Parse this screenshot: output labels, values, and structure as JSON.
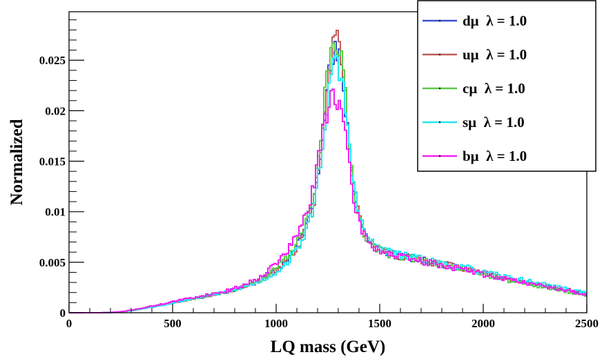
{
  "chart_data": {
    "type": "line",
    "style": "step-histogram",
    "title": "",
    "xlabel": "LQ mass (GeV)",
    "ylabel": "Normalized",
    "xlim": [
      0,
      2500
    ],
    "ylim": [
      0,
      0.0298
    ],
    "x_ticks": [
      0,
      500,
      1000,
      1500,
      2000,
      2500
    ],
    "x_tick_labels": [
      "0",
      "500",
      "1000",
      "1500",
      "2000",
      "2500"
    ],
    "y_ticks": [
      0,
      0.005,
      0.01,
      0.015,
      0.02,
      0.025
    ],
    "y_tick_labels": [
      "0",
      "0.005",
      "0.01",
      "0.015",
      "0.02",
      "0.025"
    ],
    "grid": false,
    "legend_position": "top-right",
    "bin_width": 10,
    "x": [
      0,
      50,
      100,
      150,
      200,
      250,
      300,
      350,
      400,
      450,
      500,
      550,
      600,
      650,
      700,
      750,
      800,
      850,
      900,
      950,
      1000,
      1050,
      1100,
      1150,
      1180,
      1200,
      1220,
      1240,
      1260,
      1280,
      1300,
      1320,
      1340,
      1360,
      1380,
      1400,
      1420,
      1440,
      1460,
      1500,
      1550,
      1600,
      1650,
      1700,
      1750,
      1800,
      1850,
      1900,
      1950,
      2000,
      2050,
      2100,
      2150,
      2200,
      2250,
      2300,
      2350,
      2400,
      2450,
      2500
    ],
    "series": [
      {
        "name": "dμ  λ = 1.0",
        "color": "#3a4fcf",
        "seed": 11,
        "values": [
          0,
          0,
          0,
          0,
          2e-05,
          8e-05,
          0.00022,
          0.0004,
          0.0006,
          0.0008,
          0.001,
          0.0012,
          0.0014,
          0.0016,
          0.0018,
          0.002,
          0.0023,
          0.0026,
          0.003,
          0.0035,
          0.0042,
          0.0052,
          0.0066,
          0.0088,
          0.0112,
          0.0138,
          0.0172,
          0.0212,
          0.0238,
          0.0254,
          0.0252,
          0.0232,
          0.0195,
          0.0152,
          0.0118,
          0.0095,
          0.0083,
          0.0075,
          0.0069,
          0.0063,
          0.0059,
          0.0056,
          0.0054,
          0.0052,
          0.005,
          0.0048,
          0.0046,
          0.0044,
          0.0042,
          0.0039,
          0.0037,
          0.0034,
          0.0032,
          0.003,
          0.0028,
          0.0026,
          0.0024,
          0.0022,
          0.002,
          0.0018
        ]
      },
      {
        "name": "uμ  λ = 1.0",
        "color": "#c05a5a",
        "seed": 23,
        "values": [
          0,
          0,
          0,
          0,
          2e-05,
          8e-05,
          0.00022,
          0.0004,
          0.0006,
          0.0008,
          0.001,
          0.0012,
          0.0014,
          0.0016,
          0.0018,
          0.002,
          0.0023,
          0.0026,
          0.003,
          0.0035,
          0.0042,
          0.0051,
          0.0064,
          0.0085,
          0.0108,
          0.0134,
          0.0168,
          0.0212,
          0.0246,
          0.0266,
          0.0262,
          0.0238,
          0.0198,
          0.0154,
          0.0119,
          0.0096,
          0.0083,
          0.0075,
          0.0069,
          0.0063,
          0.0059,
          0.0056,
          0.0054,
          0.0052,
          0.005,
          0.0048,
          0.0046,
          0.0044,
          0.0042,
          0.004,
          0.0037,
          0.0035,
          0.0033,
          0.0031,
          0.0029,
          0.0027,
          0.0025,
          0.0023,
          0.0021,
          0.0019
        ]
      },
      {
        "name": "cμ  λ = 1.0",
        "color": "#5cc84a",
        "seed": 37,
        "values": [
          0,
          0,
          0,
          0,
          2e-05,
          8e-05,
          0.00022,
          0.0004,
          0.0006,
          0.0008,
          0.001,
          0.0012,
          0.0014,
          0.0016,
          0.0018,
          0.002,
          0.0023,
          0.0026,
          0.003,
          0.0036,
          0.0044,
          0.0054,
          0.0068,
          0.009,
          0.0114,
          0.0142,
          0.018,
          0.0226,
          0.0258,
          0.0278,
          0.027,
          0.0242,
          0.0198,
          0.0152,
          0.0117,
          0.0094,
          0.0082,
          0.0074,
          0.0068,
          0.0062,
          0.0058,
          0.0056,
          0.0054,
          0.0052,
          0.005,
          0.0048,
          0.0046,
          0.0044,
          0.0041,
          0.0038,
          0.0036,
          0.0033,
          0.0031,
          0.0029,
          0.0027,
          0.0025,
          0.0023,
          0.0021,
          0.0019,
          0.0017
        ]
      },
      {
        "name": "sμ  λ = 1.0",
        "color": "#22e6f0",
        "seed": 53,
        "values": [
          0,
          0,
          0,
          0,
          2e-05,
          8e-05,
          0.0002,
          0.00038,
          0.00056,
          0.00076,
          0.00096,
          0.0012,
          0.0014,
          0.0016,
          0.0018,
          0.002,
          0.0023,
          0.0026,
          0.0029,
          0.0034,
          0.004,
          0.0049,
          0.0062,
          0.0082,
          0.0104,
          0.0128,
          0.016,
          0.0198,
          0.0226,
          0.0242,
          0.0244,
          0.0228,
          0.0194,
          0.0154,
          0.012,
          0.0097,
          0.0084,
          0.0076,
          0.007,
          0.0064,
          0.006,
          0.0057,
          0.0055,
          0.0053,
          0.0051,
          0.0049,
          0.0047,
          0.0045,
          0.0043,
          0.004,
          0.0038,
          0.0036,
          0.0034,
          0.0032,
          0.003,
          0.0028,
          0.0026,
          0.0024,
          0.0022,
          0.002
        ]
      },
      {
        "name": "bμ  λ = 1.0",
        "color": "#ee22ee",
        "seed": 71,
        "values": [
          0,
          0,
          0,
          0,
          3e-05,
          0.0001,
          0.00025,
          0.00045,
          0.00065,
          0.00085,
          0.0011,
          0.0013,
          0.0015,
          0.0017,
          0.0019,
          0.0021,
          0.0024,
          0.0028,
          0.0033,
          0.004,
          0.0049,
          0.006,
          0.0076,
          0.01,
          0.0122,
          0.0146,
          0.0172,
          0.0198,
          0.0214,
          0.022,
          0.0212,
          0.0192,
          0.0162,
          0.0132,
          0.0108,
          0.0091,
          0.008,
          0.0073,
          0.0067,
          0.0062,
          0.0058,
          0.0055,
          0.0053,
          0.0051,
          0.0049,
          0.0047,
          0.0045,
          0.0043,
          0.0041,
          0.0038,
          0.0036,
          0.0034,
          0.0032,
          0.003,
          0.0028,
          0.0026,
          0.0024,
          0.0022,
          0.002,
          0.0018
        ]
      }
    ]
  }
}
